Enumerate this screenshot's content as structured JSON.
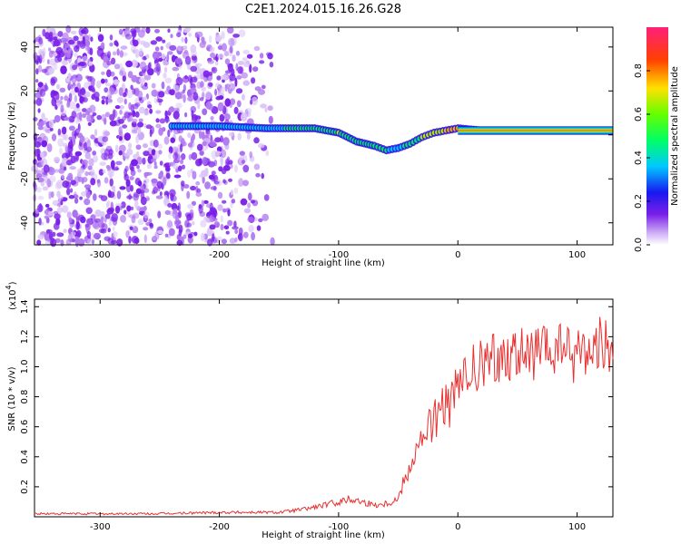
{
  "title": "C2E1.2024.015.16.26.G28",
  "chart_data": [
    {
      "type": "heatmap",
      "xlabel": "Height of straight line (km)",
      "ylabel": "Frequency (Hz)",
      "xlim": [
        -355,
        130
      ],
      "ylim": [
        -50,
        49
      ],
      "xticks": [
        -300,
        -200,
        -100,
        0,
        100
      ],
      "yticks": [
        -40,
        -20,
        0,
        20,
        40
      ],
      "colorbar": {
        "label": "Normalized spectral amplitude",
        "range": [
          0.0,
          1.0
        ],
        "ticks": [
          0.0,
          0.2,
          0.4,
          0.6,
          0.8
        ],
        "tick_labels": [
          "0.0",
          "0.2",
          "0.4",
          "0.6",
          "0.8"
        ]
      },
      "signal_track": {
        "x": [
          -240,
          -200,
          -160,
          -140,
          -120,
          -100,
          -85,
          -70,
          -60,
          -50,
          -40,
          -30,
          -20,
          -10,
          0,
          20,
          50,
          100,
          130
        ],
        "freq_hz": [
          4,
          4,
          3,
          3,
          3,
          1,
          -3,
          -5,
          -7,
          -6,
          -4,
          -1,
          1,
          2,
          3,
          2,
          2,
          2,
          2
        ],
        "amplitude": [
          0.3,
          0.35,
          0.3,
          0.5,
          0.55,
          0.6,
          0.5,
          0.55,
          0.45,
          0.4,
          0.5,
          0.6,
          0.7,
          0.75,
          0.8,
          0.85,
          0.9,
          0.95,
          0.95
        ]
      },
      "noise_region_x": [
        -355,
        -150
      ]
    },
    {
      "type": "line",
      "xlabel": "Height of straight line (km)",
      "ylabel": "SNR (10 * v/v)",
      "y_scale_label": "(x10",
      "y_scale_exp": "4",
      "y_scale_close": ")",
      "xlim": [
        -355,
        130
      ],
      "ylim": [
        0,
        1.45
      ],
      "xticks": [
        -300,
        -200,
        -100,
        0,
        100
      ],
      "yticks": [
        0.2,
        0.4,
        0.6,
        0.8,
        1.0,
        1.2,
        1.4
      ],
      "ytick_labels": [
        "0.2",
        "0.4",
        "0.6",
        "0.8",
        "1.0",
        "1.2",
        "1.4"
      ],
      "series": [
        {
          "x": [
            -355,
            -250,
            -200,
            -150,
            -130,
            -110,
            -100,
            -90,
            -80,
            -70,
            -60,
            -50,
            -45,
            -40,
            -35,
            -30,
            -25,
            -20,
            -15,
            -10,
            -5,
            0,
            5,
            10,
            15,
            20,
            30,
            40,
            50,
            60,
            70,
            80,
            85,
            90,
            95,
            100,
            105,
            110,
            115,
            120,
            125,
            130
          ],
          "y": [
            0.02,
            0.02,
            0.03,
            0.03,
            0.05,
            0.08,
            0.1,
            0.12,
            0.1,
            0.08,
            0.09,
            0.12,
            0.25,
            0.35,
            0.45,
            0.5,
            0.6,
            0.65,
            0.7,
            0.75,
            0.75,
            0.85,
            0.9,
            0.95,
            0.98,
            1.0,
            1.05,
            1.08,
            1.1,
            1.06,
            1.1,
            1.08,
            1.12,
            1.15,
            1.05,
            1.1,
            1.15,
            1.08,
            1.12,
            1.18,
            1.15,
            1.05
          ],
          "color": "#e83030"
        }
      ]
    }
  ]
}
